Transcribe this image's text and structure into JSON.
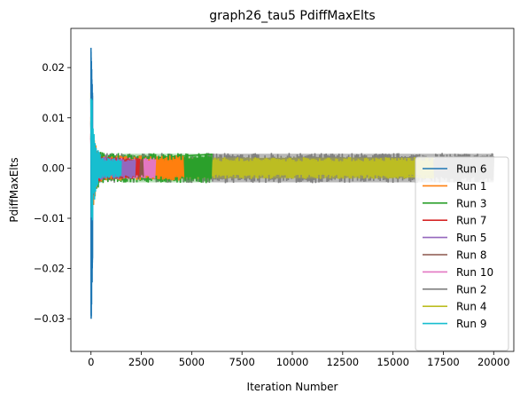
{
  "chart_data": {
    "type": "line",
    "title": "graph26_tau5 PdiffMaxElts",
    "xlabel": "Iteration Number",
    "ylabel": "PdiffMaxElts",
    "xlim": [
      -1000,
      21000
    ],
    "ylim": [
      -0.0365,
      0.0278
    ],
    "xticks": [
      0,
      2500,
      5000,
      7500,
      10000,
      12500,
      15000,
      17500,
      20000
    ],
    "xtick_labels": [
      "0",
      "2500",
      "5000",
      "7500",
      "10000",
      "12500",
      "15000",
      "17500",
      "20000"
    ],
    "yticks": [
      -0.03,
      -0.02,
      -0.01,
      0.0,
      0.01,
      0.02
    ],
    "ytick_labels": [
      "−0.03",
      "−0.02",
      "−0.01",
      "0.00",
      "0.01",
      "0.02"
    ],
    "legend_position": "lower-right",
    "series": [
      {
        "name": "Run 6",
        "color": "#1f77b4",
        "last_iteration": 80,
        "spike_max": 0.0255,
        "spike_min": -0.0335,
        "band": 0.0
      },
      {
        "name": "Run 1",
        "color": "#ff7f0e",
        "last_iteration": 4600,
        "spike_max": 0.015,
        "spike_min": -0.015,
        "band": 0.0025
      },
      {
        "name": "Run 3",
        "color": "#2ca02c",
        "last_iteration": 6000,
        "spike_max": 0.012,
        "spike_min": -0.013,
        "band": 0.003
      },
      {
        "name": "Run 7",
        "color": "#d62728",
        "last_iteration": 2400,
        "spike_max": 0.01,
        "spike_min": -0.01,
        "band": 0.0022
      },
      {
        "name": "Run 5",
        "color": "#9467bd",
        "last_iteration": 2200,
        "spike_max": 0.01,
        "spike_min": -0.01,
        "band": 0.0022
      },
      {
        "name": "Run 8",
        "color": "#8c564b",
        "last_iteration": 2600,
        "spike_max": 0.01,
        "spike_min": -0.01,
        "band": 0.0022
      },
      {
        "name": "Run 10",
        "color": "#e377c2",
        "last_iteration": 3200,
        "spike_max": 0.01,
        "spike_min": -0.01,
        "band": 0.0022
      },
      {
        "name": "Run 2",
        "color": "#7f7f7f",
        "last_iteration": 20000,
        "spike_max": 0.01,
        "spike_min": -0.01,
        "band": 0.003
      },
      {
        "name": "Run 4",
        "color": "#bcbd22",
        "last_iteration": 17000,
        "spike_max": 0.016,
        "spike_min": -0.016,
        "band": 0.0022
      },
      {
        "name": "Run 9",
        "color": "#17becf",
        "last_iteration": 1500,
        "spike_max": 0.021,
        "spike_min": -0.0165,
        "band": 0.002
      }
    ]
  }
}
